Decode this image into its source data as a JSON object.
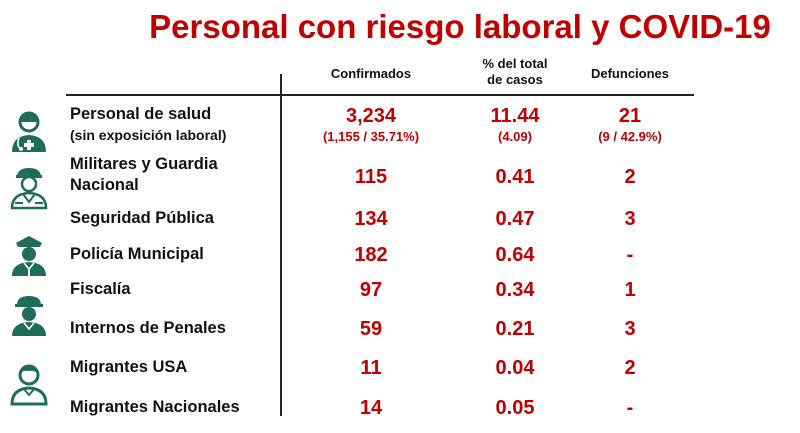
{
  "title": "Personal con riesgo laboral y COVID-19",
  "headers": {
    "confirmados": "Confirmados",
    "pct_line1": "% del total",
    "pct_line2": "de casos",
    "defunciones": "Defunciones"
  },
  "colors": {
    "accent": "#c00000",
    "icon": "#1f6b5c"
  },
  "rows": [
    {
      "label": "Personal de salud",
      "sublabel": "(sin exposición laboral)",
      "confirmados": "3,234",
      "confirmados_sub": "(1,155 / 35.71%)",
      "pct": "11.44",
      "pct_sub": "(4.09)",
      "defunciones": "21",
      "defunciones_sub": "(9 / 42.9%)",
      "icon": "health-worker-icon"
    },
    {
      "label": "Militares y Guardia Nacional",
      "confirmados": "115",
      "pct": "0.41",
      "defunciones": "2",
      "icon": "soldier-icon"
    },
    {
      "label": "Seguridad Pública",
      "confirmados": "134",
      "pct": "0.47",
      "defunciones": "3"
    },
    {
      "label": "Policía Municipal",
      "confirmados": "182",
      "pct": "0.64",
      "defunciones": "-",
      "icon": "police-officer-icon"
    },
    {
      "label": "Fiscalía",
      "confirmados": "97",
      "pct": "0.34",
      "defunciones": "1"
    },
    {
      "label": "Internos de Penales",
      "confirmados": "59",
      "pct": "0.21",
      "defunciones": "3",
      "icon": "guard-icon"
    },
    {
      "label": "Migrantes USA",
      "confirmados": "11",
      "pct": "0.04",
      "defunciones": "2",
      "icon": "migrant-icon"
    },
    {
      "label": "Migrantes Nacionales",
      "confirmados": "14",
      "pct": "0.05",
      "defunciones": "-"
    }
  ]
}
